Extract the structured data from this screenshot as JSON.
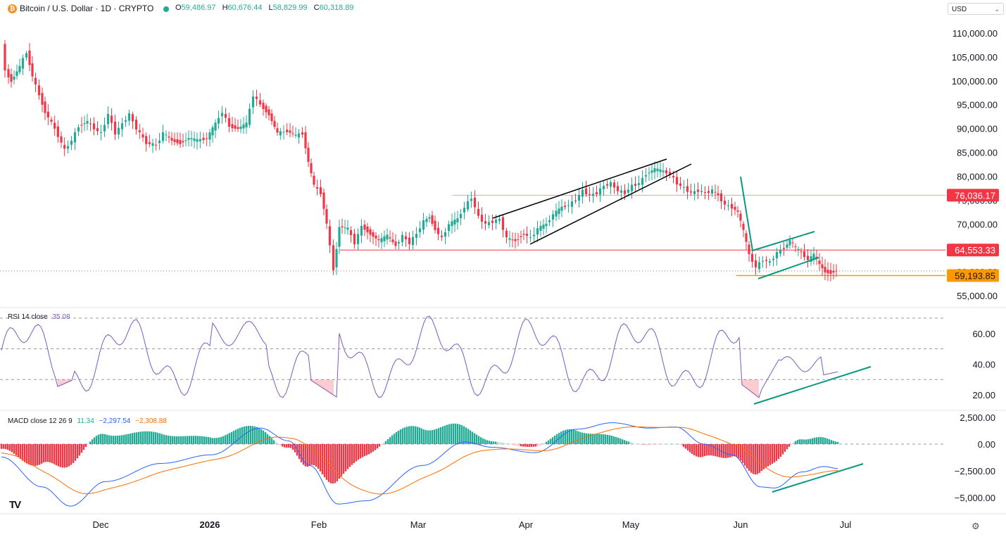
{
  "header": {
    "coin_glyph": "₿",
    "symbol_title": "Bitcoin / U.S. Dollar · 1D · CRYPTO",
    "ohlc": [
      {
        "key": "O",
        "value": "59,486.97"
      },
      {
        "key": "H",
        "value": "60,676.44"
      },
      {
        "key": "L",
        "value": "58,829.99"
      },
      {
        "key": "C",
        "value": "60,318.89"
      }
    ],
    "currency": "USD"
  },
  "price_axis": {
    "ticks": [
      "110,000.00",
      "105,000.00",
      "100,000.00",
      "95,000.00",
      "90,000.00",
      "85,000.00",
      "80,000.00",
      "75,000.00",
      "70,000.00",
      "65,000.00",
      "60,000.00",
      "55,000.00"
    ],
    "tick_values": [
      110000,
      105000,
      100000,
      95000,
      90000,
      85000,
      80000,
      75000,
      70000,
      65000,
      60000,
      55000
    ]
  },
  "levels": [
    {
      "label": "76,036.17",
      "value": 76036.17,
      "color": "#f23645"
    },
    {
      "label": "64,553.33",
      "value": 64553.33,
      "color": "#f23645"
    },
    {
      "label": "59,193.85",
      "value": 59193.85,
      "color": "#ff9800"
    }
  ],
  "time_axis": [
    "Dec",
    "2026",
    "Feb",
    "Mar",
    "Apr",
    "May",
    "Jun",
    "Jul"
  ],
  "rsi": {
    "title": "RSI 14 close",
    "value": "35.08",
    "ticks": [
      "60.00",
      "40.00",
      "20.00"
    ],
    "tick_values": [
      60,
      40,
      20
    ],
    "bands": [
      70,
      50,
      30
    ],
    "color": "#7e57c2"
  },
  "macd": {
    "title": "MACD close 12 26 9",
    "hist_value": "11.34",
    "macd_value": "−2,297.54",
    "signal_value": "−2,308.88",
    "ticks": [
      "2,500.00",
      "0.00",
      "−2,500.00",
      "−5,000.00"
    ],
    "tick_values": [
      2500,
      0,
      -2500,
      -5000
    ],
    "macd_color": "#2962ff",
    "signal_color": "#ff6d00"
  },
  "colors": {
    "up": "#22ab94",
    "down": "#f23645",
    "support": "#ff9800",
    "trendline": "#000000",
    "teal_line": "#089981"
  },
  "icons": {
    "logo": "TV",
    "settings": "⚙",
    "chevron": "⌄"
  },
  "chart_data": {
    "type": "candlestick",
    "title": "Bitcoin / U.S. Dollar · 1D · CRYPTO",
    "ylim": [
      53000,
      112000
    ],
    "closes_approx": [
      {
        "date": "2025-11-20",
        "close": 91000
      },
      {
        "date": "2025-12-01",
        "close": 86000
      },
      {
        "date": "2025-12-15",
        "close": 88000
      },
      {
        "date": "2026-01-01",
        "close": 88500
      },
      {
        "date": "2026-01-14",
        "close": 96000
      },
      {
        "date": "2026-01-31",
        "close": 79000
      },
      {
        "date": "2026-02-05",
        "close": 63000
      },
      {
        "date": "2026-02-15",
        "close": 68000
      },
      {
        "date": "2026-03-01",
        "close": 66000
      },
      {
        "date": "2026-03-15",
        "close": 72000
      },
      {
        "date": "2026-04-01",
        "close": 68000
      },
      {
        "date": "2026-04-15",
        "close": 75000
      },
      {
        "date": "2026-05-01",
        "close": 78000
      },
      {
        "date": "2026-05-10",
        "close": 81000
      },
      {
        "date": "2026-05-20",
        "close": 77500
      },
      {
        "date": "2026-06-01",
        "close": 70000
      },
      {
        "date": "2026-06-05",
        "close": 62000
      },
      {
        "date": "2026-06-15",
        "close": 66000
      },
      {
        "date": "2026-06-25",
        "close": 59500
      },
      {
        "date": "2026-06-28",
        "close": 60318.89
      }
    ]
  }
}
